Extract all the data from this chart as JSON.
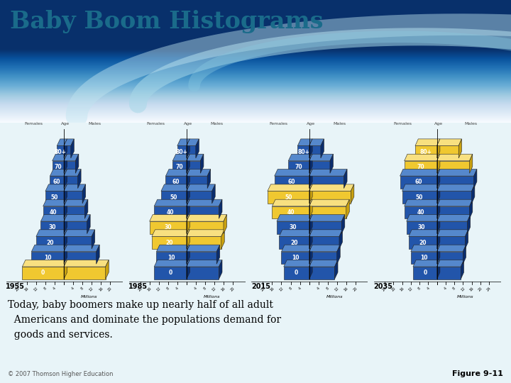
{
  "title": "Baby Boom Histograms",
  "subtitle": "Today, baby boomers make up nearly half of all adult\n  Americans and dominate the populations demand for\n  goods and services.",
  "figure_label": "Figure 9-11",
  "copyright": "© 2007 Thomson Higher Education",
  "years": [
    "1955",
    "1985",
    "2015",
    "2035"
  ],
  "age_labels": [
    "0",
    "10",
    "20",
    "30",
    "40",
    "50",
    "60",
    "70",
    "80+"
  ],
  "title_color": "#1a6b8a",
  "bar_color_blue": "#2255aa",
  "bar_color_blue_top": "#5588cc",
  "bar_color_blue_side": "#0a2d6e",
  "bar_color_yellow": "#f0c830",
  "bar_color_yellow_top": "#f8e080",
  "bar_color_yellow_side": "#c8a010",
  "pyramids": {
    "1955": {
      "females": [
        18,
        14,
        12,
        10,
        9,
        8,
        6,
        5,
        3
      ],
      "males": [
        18,
        14,
        12,
        10,
        9,
        8,
        6,
        5,
        3
      ],
      "boom_ages": [
        0
      ],
      "xlim": 22
    },
    "1985": {
      "females": [
        14,
        13,
        15,
        16,
        14,
        11,
        9,
        6,
        4
      ],
      "males": [
        14,
        13,
        15,
        16,
        14,
        11,
        9,
        6,
        4
      ],
      "boom_ages": [
        2,
        3
      ],
      "xlim": 22
    },
    "2015": {
      "females": [
        11,
        12,
        13,
        14,
        16,
        18,
        15,
        9,
        5
      ],
      "males": [
        11,
        12,
        13,
        14,
        16,
        18,
        15,
        9,
        5
      ],
      "boom_ages": [
        4,
        5
      ],
      "xlim": 22
    },
    "2035": {
      "females": [
        11,
        12,
        13,
        14,
        15,
        16,
        17,
        15,
        10
      ],
      "males": [
        11,
        12,
        13,
        14,
        15,
        16,
        17,
        15,
        10
      ],
      "boom_ages": [
        7,
        8
      ],
      "xlim": 26
    }
  }
}
